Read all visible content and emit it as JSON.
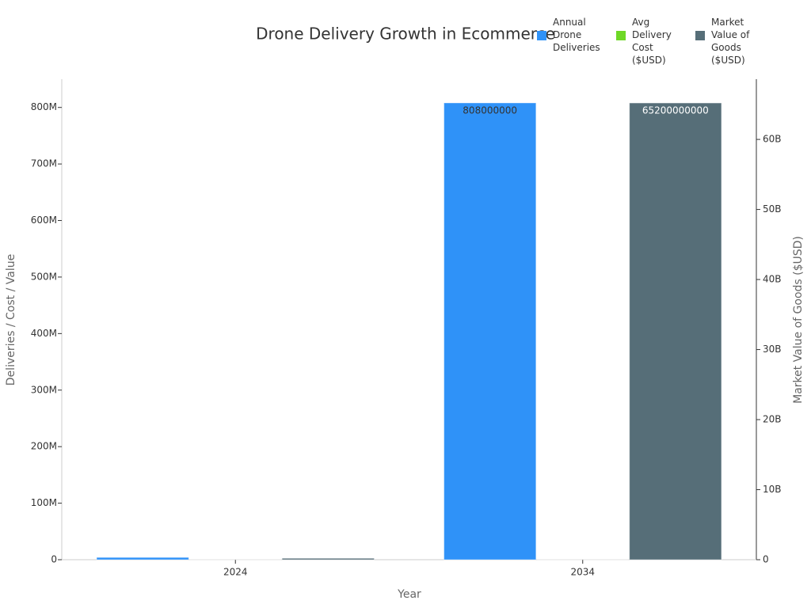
{
  "chart_data": {
    "type": "bar",
    "title": "Drone Delivery Growth in Ecommerce",
    "x_label": "Year",
    "y_label": "Deliveries / Cost / Value",
    "y2_label": "Market Value of Goods ($USD)",
    "categories": [
      "2024",
      "2034"
    ],
    "series": [
      {
        "name": "Annual Drone Deliveries",
        "color": "#2f92f8",
        "values": [
          4000000,
          808000000
        ]
      },
      {
        "name": "Avg Delivery Cost ($USD)",
        "color": "#6ed826",
        "values": [
          10,
          2
        ]
      },
      {
        "name": "Market Value of Goods ($USD)",
        "color": "#566e78",
        "axis": "y2",
        "values": [
          200000000,
          65200000000
        ]
      }
    ],
    "ylim": [
      0,
      850000000
    ],
    "yticks": [
      0,
      {
        "value": 100000000,
        "label": "100M"
      },
      {
        "value": 200000000,
        "label": "200M"
      },
      {
        "value": 300000000,
        "label": "300M"
      },
      {
        "value": 400000000,
        "label": "400M"
      },
      {
        "value": 500000000,
        "label": "500M"
      },
      {
        "value": 600000000,
        "label": "600M"
      },
      {
        "value": 700000000,
        "label": "700M"
      },
      {
        "value": 800000000,
        "label": "800M"
      }
    ],
    "y2lim": [
      0,
      68600000000
    ],
    "y2ticks": [
      0,
      {
        "value": 10000000000,
        "label": "10B"
      },
      {
        "value": 20000000000,
        "label": "20B"
      },
      {
        "value": 30000000000,
        "label": "30B"
      },
      {
        "value": 40000000000,
        "label": "40B"
      },
      {
        "value": 50000000000,
        "label": "50B"
      },
      {
        "value": 60000000000,
        "label": "60B"
      }
    ],
    "grid": false,
    "legend": "top-right"
  }
}
